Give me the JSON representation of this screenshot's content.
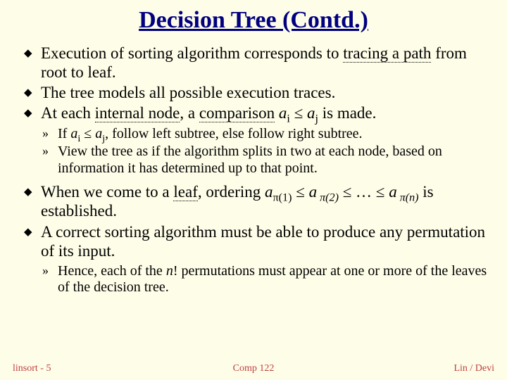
{
  "title": "Decision Tree (Contd.)",
  "bullets": {
    "b1_a": "Execution of sorting algorithm corresponds to ",
    "b1_b": "tracing a path",
    "b1_c": " from root to leaf.",
    "b2": "The tree models all possible execution traces.",
    "b3_a": "At each ",
    "b3_b": "internal node",
    "b3_c": ", a ",
    "b3_d": "comparison",
    "b3_e": " a",
    "b3_f": "i",
    "b3_g": " ≤ a",
    "b3_h": "j",
    "b3_i": " is made.",
    "s1_a": "If ",
    "s1_b": "a",
    "s1_c": "i",
    "s1_d": " ≤ ",
    "s1_e": "a",
    "s1_f": "j",
    "s1_g": ", follow left subtree, else follow right subtree.",
    "s2": "View the tree as if the algorithm splits in two at each node, based on information it has determined up to that point.",
    "b4_a": "When we come to a ",
    "b4_b": "leaf",
    "b4_c": ", ordering ",
    "b4_d": "a",
    "b4_e": "π(1)",
    "b4_f": " ≤ ",
    "b4_g": "a",
    "b4_h": " π(2)",
    "b4_i": " ≤ … ≤ ",
    "b4_j": "a",
    "b4_k": " π(n)",
    "b4_l": " is established.",
    "b5": "A correct sorting algorithm must be able to produce any permutation of its input.",
    "s3_a": "Hence, each of the ",
    "s3_b": "n",
    "s3_c": "! permutations must appear at one or more of the leaves of the decision tree."
  },
  "footer": {
    "left": "linsort - 5",
    "center": "Comp 122",
    "right": "Lin / Devi"
  },
  "colors": {
    "background": "#fefde8",
    "title": "#000080",
    "footer": "#c04040"
  }
}
